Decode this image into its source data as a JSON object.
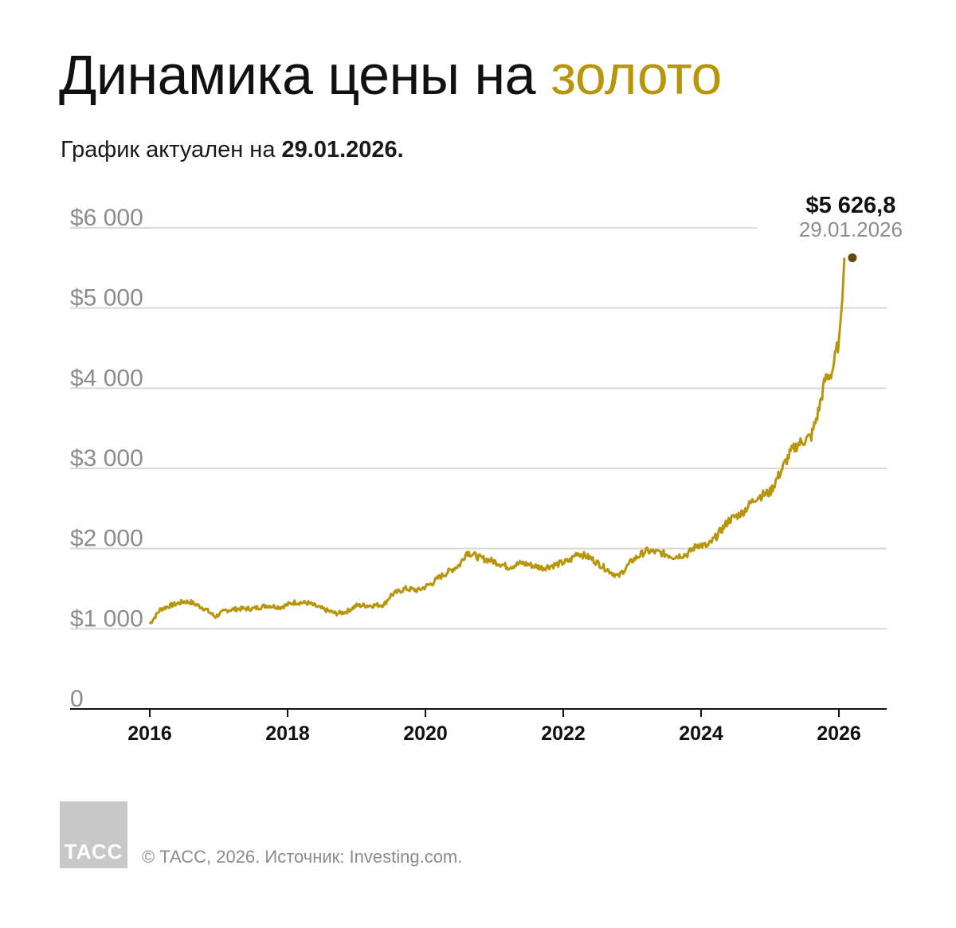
{
  "title": {
    "main": "Динамика цены на",
    "accent": "золото"
  },
  "subtitle": {
    "text": "График актуален на",
    "date": "29.01.2026."
  },
  "colors": {
    "accent": "#b8960c",
    "line": "#b8960c",
    "endpoint": "#5e4a0b",
    "grid": "#d9d9d9",
    "axis": "#111111",
    "tick": "#8c8c8c"
  },
  "chart_data": {
    "type": "line",
    "title": "Динамика цены на золото",
    "xlabel": "",
    "ylabel": "",
    "xlim": [
      2016.0,
      2026.8
    ],
    "ylim": [
      0,
      6000
    ],
    "x_ticks": [
      2016,
      2018,
      2020,
      2022,
      2024,
      2026
    ],
    "x_tick_labels": [
      "2016",
      "2018",
      "2020",
      "2022",
      "2024",
      "2026"
    ],
    "y_ticks": [
      0,
      1000,
      2000,
      3000,
      4000,
      5000,
      6000
    ],
    "y_tick_labels": [
      "0",
      "$1 000",
      "$2 000",
      "$3 000",
      "$4 000",
      "$5 000",
      "$6 000"
    ],
    "grid": true,
    "series": [
      {
        "x": [
          2016.0,
          2016.15,
          2016.3,
          2016.5,
          2016.6,
          2016.8,
          2016.95,
          2017.1,
          2017.3,
          2017.5,
          2017.7,
          2017.9,
          2018.1,
          2018.3,
          2018.5,
          2018.7,
          2018.85,
          2019.0,
          2019.2,
          2019.4,
          2019.5,
          2019.7,
          2019.9,
          2020.1,
          2020.2,
          2020.35,
          2020.5,
          2020.6,
          2020.8,
          2021.0,
          2021.2,
          2021.4,
          2021.5,
          2021.7,
          2021.9,
          2022.1,
          2022.2,
          2022.4,
          2022.6,
          2022.8,
          2023.0,
          2023.2,
          2023.4,
          2023.6,
          2023.8,
          2023.95,
          2024.1,
          2024.25,
          2024.4,
          2024.6,
          2024.8,
          2025.0,
          2025.15,
          2025.3,
          2025.4,
          2025.5,
          2025.6,
          2025.7,
          2025.8,
          2025.9,
          2026.0,
          2026.05,
          2026.08
        ],
        "values": [
          1060,
          1240,
          1290,
          1340,
          1330,
          1250,
          1150,
          1230,
          1250,
          1250,
          1290,
          1270,
          1330,
          1320,
          1250,
          1190,
          1210,
          1290,
          1290,
          1300,
          1420,
          1500,
          1480,
          1570,
          1640,
          1720,
          1800,
          1960,
          1880,
          1840,
          1770,
          1820,
          1800,
          1760,
          1800,
          1850,
          1950,
          1880,
          1760,
          1650,
          1850,
          1970,
          1950,
          1900,
          1930,
          2050,
          2030,
          2180,
          2350,
          2450,
          2640,
          2700,
          2950,
          3200,
          3300,
          3350,
          3400,
          3700,
          4100,
          4200,
          4600,
          5100,
          5626.8
        ]
      }
    ],
    "annotation": {
      "value": "$5 626,8",
      "date": "29.01.2026",
      "x": 2026.08,
      "y": 5626.8
    }
  },
  "footer": {
    "logo": "ТАСС",
    "source": "© ТАСС, 2026. Источник: Investing.com."
  }
}
